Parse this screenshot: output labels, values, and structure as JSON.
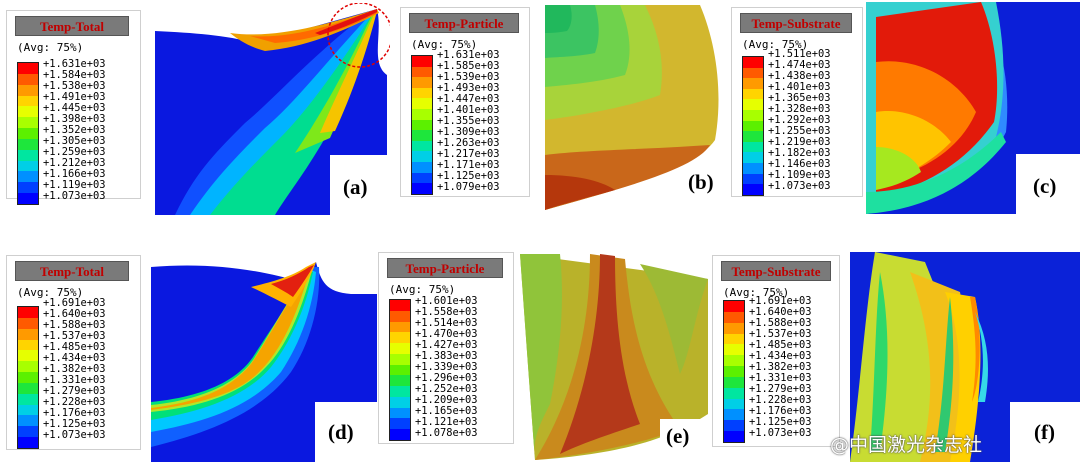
{
  "legends": [
    {
      "id": "a",
      "title": "Temp-Total",
      "avg": "(Avg: 75%)",
      "values": [
        "+1.631e+03",
        "+1.584e+03",
        "+1.538e+03",
        "+1.491e+03",
        "+1.445e+03",
        "+1.398e+03",
        "+1.352e+03",
        "+1.305e+03",
        "+1.259e+03",
        "+1.212e+03",
        "+1.166e+03",
        "+1.119e+03",
        "+1.073e+03"
      ]
    },
    {
      "id": "b",
      "title": "Temp-Particle",
      "avg": "(Avg: 75%)",
      "values": [
        "+1.631e+03",
        "+1.585e+03",
        "+1.539e+03",
        "+1.493e+03",
        "+1.447e+03",
        "+1.401e+03",
        "+1.355e+03",
        "+1.309e+03",
        "+1.263e+03",
        "+1.217e+03",
        "+1.171e+03",
        "+1.125e+03",
        "+1.079e+03"
      ]
    },
    {
      "id": "c",
      "title": "Temp-Substrate",
      "avg": "(Avg: 75%)",
      "values": [
        "+1.511e+03",
        "+1.474e+03",
        "+1.438e+03",
        "+1.401e+03",
        "+1.365e+03",
        "+1.328e+03",
        "+1.292e+03",
        "+1.255e+03",
        "+1.219e+03",
        "+1.182e+03",
        "+1.146e+03",
        "+1.109e+03",
        "+1.073e+03"
      ]
    },
    {
      "id": "d",
      "title": "Temp-Total",
      "avg": "(Avg: 75%)",
      "values": [
        "+1.691e+03",
        "+1.640e+03",
        "+1.588e+03",
        "+1.537e+03",
        "+1.485e+03",
        "+1.434e+03",
        "+1.382e+03",
        "+1.331e+03",
        "+1.279e+03",
        "+1.228e+03",
        "+1.176e+03",
        "+1.125e+03",
        "+1.073e+03"
      ]
    },
    {
      "id": "e",
      "title": "Temp-Particle",
      "avg": "(Avg: 75%)",
      "values": [
        "+1.601e+03",
        "+1.558e+03",
        "+1.514e+03",
        "+1.470e+03",
        "+1.427e+03",
        "+1.383e+03",
        "+1.339e+03",
        "+1.296e+03",
        "+1.252e+03",
        "+1.209e+03",
        "+1.165e+03",
        "+1.121e+03",
        "+1.078e+03"
      ]
    },
    {
      "id": "f",
      "title": "Temp-Substrate",
      "avg": "(Avg: 75%)",
      "values": [
        "+1.691e+03",
        "+1.640e+03",
        "+1.588e+03",
        "+1.537e+03",
        "+1.485e+03",
        "+1.434e+03",
        "+1.382e+03",
        "+1.331e+03",
        "+1.279e+03",
        "+1.228e+03",
        "+1.176e+03",
        "+1.125e+03",
        "+1.073e+03"
      ]
    }
  ],
  "panel_labels": {
    "a": "(a)",
    "b": "(b)",
    "c": "(c)",
    "d": "(d)",
    "e": "(e)",
    "f": "(f)"
  },
  "colormap": [
    "#ff0000",
    "#ff5a00",
    "#ff9a00",
    "#ffd400",
    "#e6ff00",
    "#a8ff00",
    "#5cf000",
    "#1ee63c",
    "#00e6a0",
    "#00cfe6",
    "#0090ff",
    "#0040ff",
    "#0000ff"
  ],
  "watermark": "@中国激光杂志社"
}
